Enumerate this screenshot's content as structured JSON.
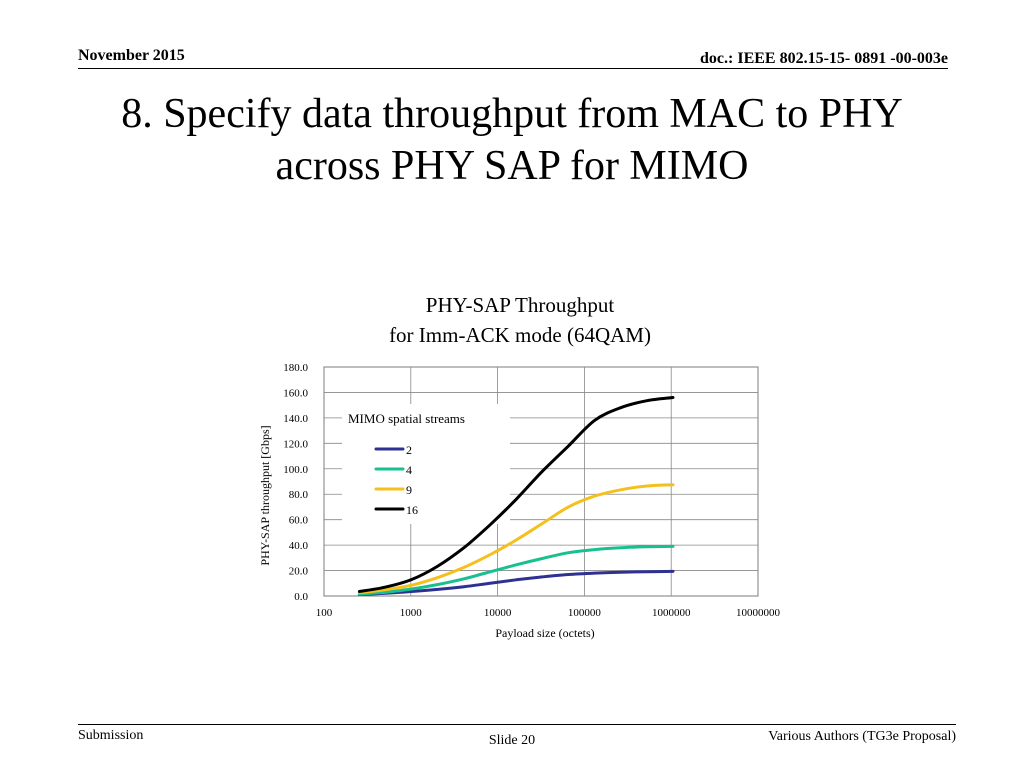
{
  "header": {
    "date": "November 2015",
    "doc_id": "doc.: IEEE 802.15-15- 0891 -00-003e"
  },
  "slide": {
    "title_line1": "8. Specify data throughput from MAC to PHY",
    "title_line2": "across PHY SAP for MIMO"
  },
  "footer": {
    "left": "Submission",
    "center": "Slide 20",
    "right": "Various Authors (TG3e Proposal)"
  },
  "chart_data": {
    "type": "line",
    "title_line1": "PHY-SAP Throughput",
    "title_line2": "for Imm-ACK mode (64QAM)",
    "xlabel": "Payload size (octets)",
    "ylabel": "PHY-SAP throughput [Gbps]",
    "x_scale": "log",
    "x_ticks": [
      "100",
      "1000",
      "10000",
      "100000",
      "1000000",
      "10000000"
    ],
    "y_ticks": [
      "0.0",
      "20.0",
      "40.0",
      "60.0",
      "80.0",
      "100.0",
      "120.0",
      "140.0",
      "160.0",
      "180.0"
    ],
    "ylim": [
      0,
      180
    ],
    "xlim": [
      100,
      10000000
    ],
    "legend_title": "MIMO spatial streams",
    "legend_position": "top-left",
    "x": [
      256,
      512,
      1024,
      2048,
      4096,
      8192,
      16384,
      32768,
      65536,
      131072,
      262144,
      524288,
      1048576
    ],
    "series": [
      {
        "name": "2",
        "color": "#2e3192",
        "values": [
          1.2,
          2.2,
          3.5,
          5.2,
          7.3,
          10.0,
          12.7,
          15.0,
          16.9,
          18.0,
          18.7,
          19.1,
          19.3
        ]
      },
      {
        "name": "4",
        "color": "#19c08f",
        "values": [
          1.5,
          3.0,
          5.5,
          9.0,
          13.5,
          19.0,
          24.5,
          29.5,
          34.0,
          36.5,
          38.0,
          38.7,
          39.0
        ]
      },
      {
        "name": "9",
        "color": "#f5c01e",
        "values": [
          2.5,
          5.0,
          8.5,
          14.5,
          22.5,
          32.5,
          44.0,
          57.0,
          70.0,
          78.5,
          83.5,
          86.5,
          87.5
        ]
      },
      {
        "name": "16",
        "color": "#000000",
        "values": [
          3.5,
          7.0,
          13.0,
          23.5,
          38.0,
          56.0,
          76.0,
          98.0,
          118.0,
          138.0,
          148.0,
          153.5,
          156.0
        ]
      }
    ]
  }
}
